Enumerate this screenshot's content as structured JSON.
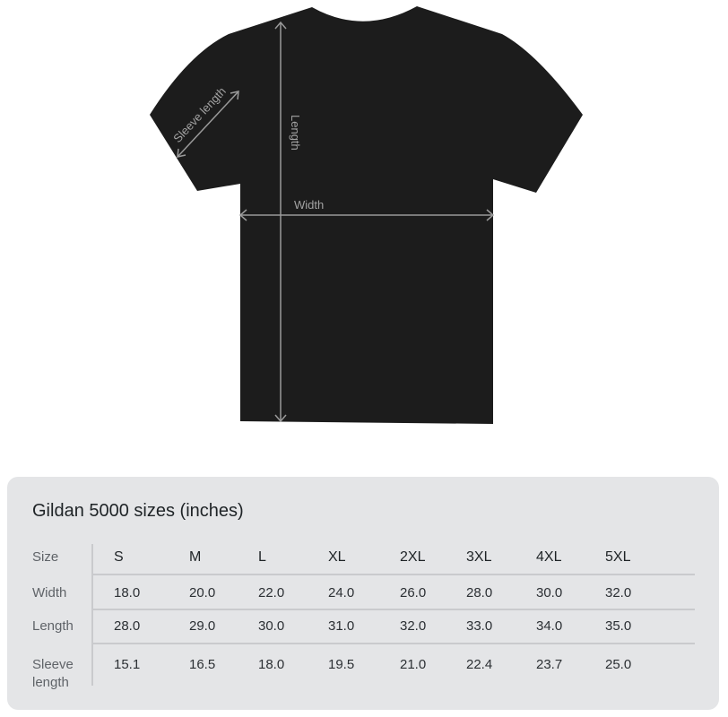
{
  "diagram": {
    "shirt_color": "#1c1c1c",
    "measure_color": "#9a9a9a",
    "labels": {
      "sleeve": "Sleeve length",
      "length": "Length",
      "width": "Width"
    }
  },
  "table": {
    "title": "Gildan 5000 sizes (inches)",
    "row_labels": [
      "Size",
      "Width",
      "Length",
      "Sleeve",
      "length"
    ],
    "sizes": [
      "S",
      "M",
      "L",
      "XL",
      "2XL",
      "3XL",
      "4XL",
      "5XL"
    ],
    "width": [
      "18.0",
      "20.0",
      "22.0",
      "24.0",
      "26.0",
      "28.0",
      "30.0",
      "32.0"
    ],
    "length": [
      "28.0",
      "29.0",
      "30.0",
      "31.0",
      "32.0",
      "33.0",
      "34.0",
      "35.0"
    ],
    "sleeve": [
      "15.1",
      "16.5",
      "18.0",
      "19.5",
      "21.0",
      "22.4",
      "23.7",
      "25.0"
    ]
  }
}
